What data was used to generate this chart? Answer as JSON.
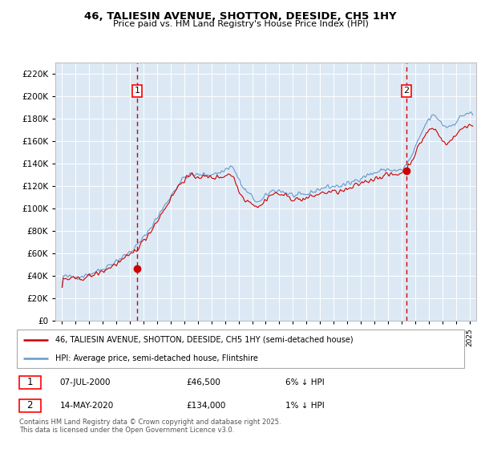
{
  "title": "46, TALIESIN AVENUE, SHOTTON, DEESIDE, CH5 1HY",
  "subtitle": "Price paid vs. HM Land Registry's House Price Index (HPI)",
  "plot_bg_color": "#dce9f5",
  "ylim": [
    0,
    230000
  ],
  "yticks": [
    0,
    20000,
    40000,
    60000,
    80000,
    100000,
    120000,
    140000,
    160000,
    180000,
    200000,
    220000
  ],
  "xlim_start": 1994.5,
  "xlim_end": 2025.5,
  "sale1_date": 2000.52,
  "sale1_price": 46500,
  "sale2_date": 2020.37,
  "sale2_price": 134000,
  "red_line_color": "#cc0000",
  "blue_line_color": "#6699cc",
  "marker_color": "#cc0000",
  "vline_color": "#cc0000",
  "legend_label_red": "46, TALIESIN AVENUE, SHOTTON, DEESIDE, CH5 1HY (semi-detached house)",
  "legend_label_blue": "HPI: Average price, semi-detached house, Flintshire",
  "annotation1_label": "1",
  "annotation2_label": "2",
  "note1_label": "1",
  "note1_date": "07-JUL-2000",
  "note1_price": "£46,500",
  "note1_hpi": "6% ↓ HPI",
  "note2_label": "2",
  "note2_date": "14-MAY-2020",
  "note2_price": "£134,000",
  "note2_hpi": "1% ↓ HPI",
  "copyright_text": "Contains HM Land Registry data © Crown copyright and database right 2025.\nThis data is licensed under the Open Government Licence v3.0."
}
